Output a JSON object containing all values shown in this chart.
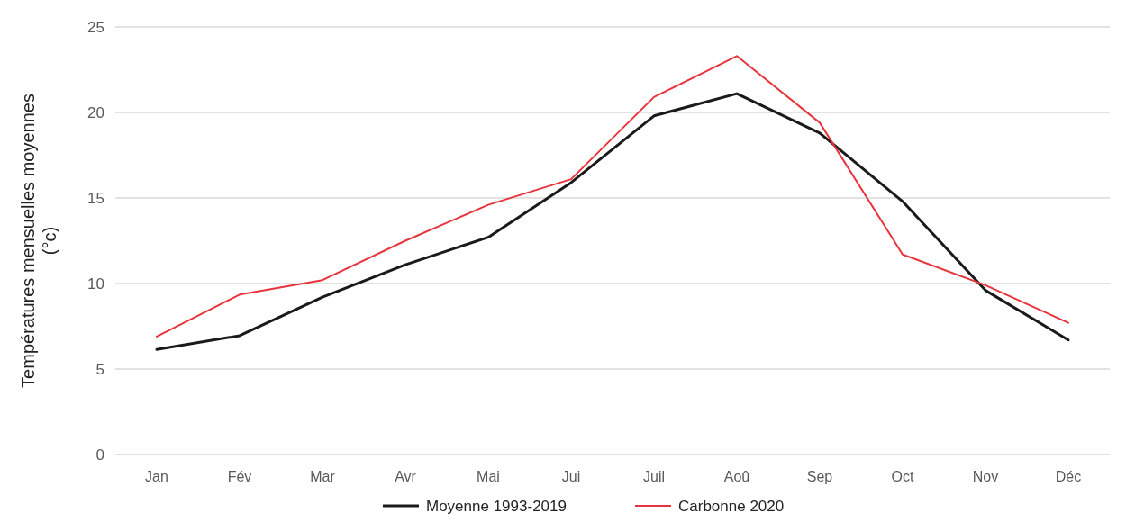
{
  "chart_data": {
    "type": "line",
    "ylabel": "Températures mensuelles moyennes (°c)",
    "categories": [
      "Jan",
      "Fév",
      "Mar",
      "Avr",
      "Mai",
      "Jui",
      "Juil",
      "Aoû",
      "Sep",
      "Oct",
      "Nov",
      "Déc"
    ],
    "series": [
      {
        "name": "Moyenne 1993-2019",
        "color": "#1a1a1a",
        "values": [
          6.15,
          6.95,
          9.2,
          11.1,
          12.7,
          15.9,
          19.8,
          21.1,
          18.8,
          14.8,
          9.6,
          6.7
        ]
      },
      {
        "name": "Carbonne 2020",
        "color": "#e8343c",
        "values": [
          6.9,
          9.35,
          10.2,
          12.5,
          14.6,
          16.1,
          20.9,
          23.3,
          19.4,
          11.7,
          9.9,
          7.7
        ]
      }
    ],
    "ylim": [
      0,
      25
    ],
    "yticks": [
      0,
      5,
      10,
      15,
      20,
      25
    ],
    "grid": "y",
    "legend": "bottom",
    "marker": "none",
    "line_style": "solid"
  }
}
